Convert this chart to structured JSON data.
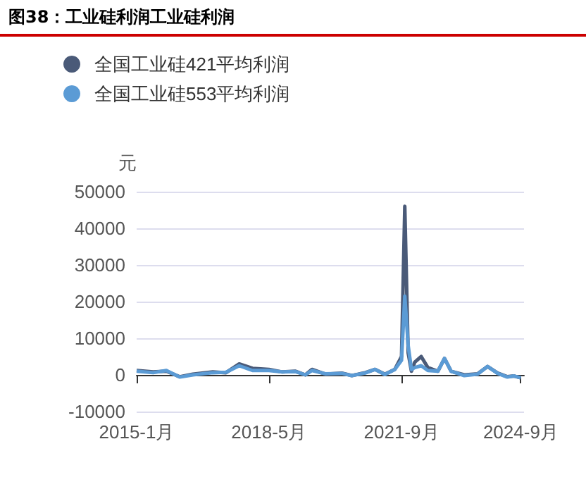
{
  "chart_data": {
    "type": "line",
    "title": "图38：工业硅利润工业硅利润",
    "ylabel": "元",
    "x": [
      "2015-01",
      "2015-06",
      "2015-10",
      "2016-02",
      "2016-06",
      "2016-12",
      "2017-04",
      "2017-08",
      "2017-12",
      "2018-05",
      "2018-09",
      "2019-01",
      "2019-04",
      "2019-06",
      "2019-10",
      "2020-03",
      "2020-06",
      "2020-10",
      "2021-01",
      "2021-04",
      "2021-07",
      "2021-09",
      "2021-10",
      "2021-11",
      "2021-12",
      "2022-01",
      "2022-03",
      "2022-05",
      "2022-08",
      "2022-10",
      "2022-12",
      "2023-04",
      "2023-08",
      "2023-11",
      "2024-02",
      "2024-05",
      "2024-07",
      "2024-09"
    ],
    "series": [
      {
        "name": "全国工业硅421平均利润",
        "color": "#4a5a78",
        "values": [
          1200,
          800,
          1000,
          -500,
          200,
          800,
          600,
          3000,
          1800,
          1500,
          800,
          1000,
          0,
          1500,
          200,
          500,
          -200,
          600,
          1500,
          200,
          1500,
          5000,
          46000,
          6000,
          1000,
          3500,
          5000,
          2000,
          1000,
          4500,
          1000,
          0,
          300,
          2300,
          500,
          -500,
          -300,
          -800
        ]
      },
      {
        "name": "全国工业硅553平均利润",
        "color": "#5b9bd5",
        "values": [
          1000,
          600,
          1200,
          -600,
          0,
          600,
          700,
          2500,
          1200,
          1200,
          800,
          900,
          0,
          1200,
          300,
          400,
          -200,
          500,
          1500,
          100,
          1500,
          4000,
          21500,
          8000,
          1500,
          2000,
          2500,
          1200,
          1000,
          4500,
          1000,
          -200,
          200,
          2300,
          400,
          -600,
          -300,
          -800
        ]
      }
    ],
    "xlim": [
      "2015-01",
      "2024-10"
    ],
    "xticks": [
      {
        "value": "2015-01",
        "label": "2015-1月"
      },
      {
        "value": "2018-05",
        "label": "2018-5月"
      },
      {
        "value": "2021-09",
        "label": "2021-9月"
      },
      {
        "value": "2024-09",
        "label": "2024-9月"
      }
    ],
    "ylim": [
      -10000,
      50000
    ],
    "yticks": [
      -10000,
      0,
      10000,
      20000,
      30000,
      40000,
      50000
    ],
    "grid": "y",
    "legend": "top left",
    "marker": "none",
    "line_style": "solid"
  }
}
